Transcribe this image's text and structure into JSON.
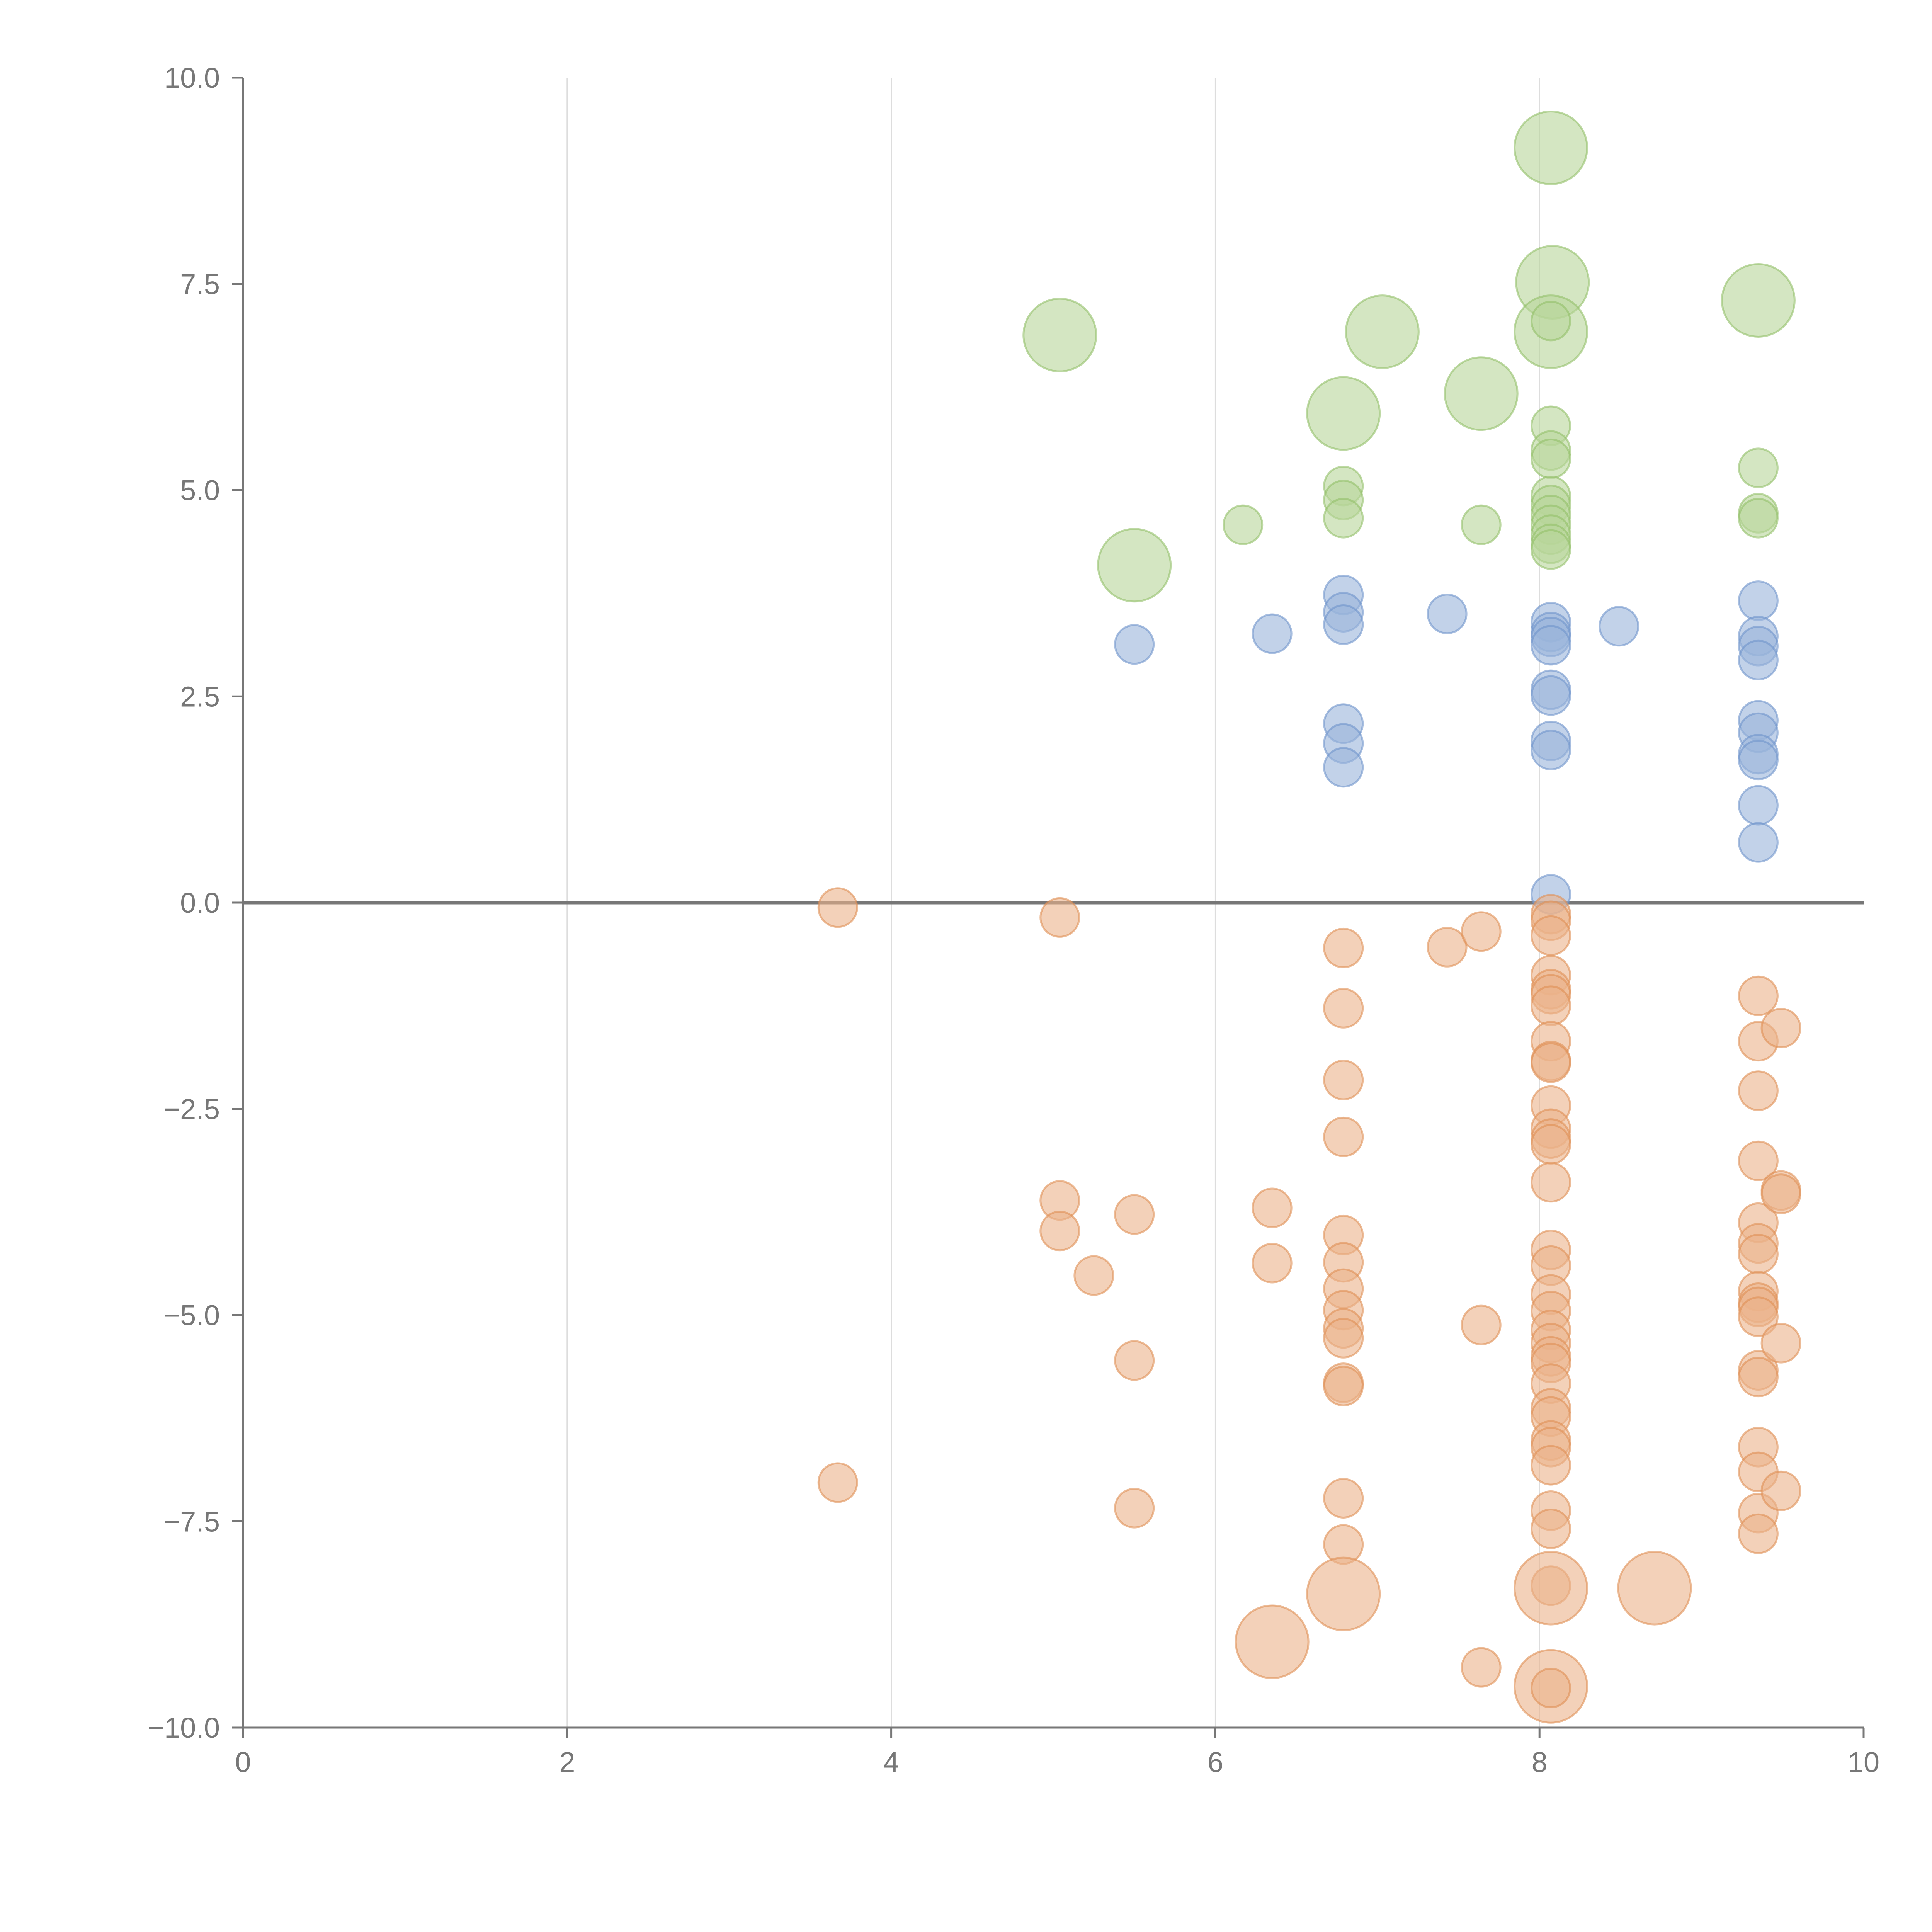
{
  "chart_data": {
    "type": "scatter",
    "title": "",
    "xlabel": "",
    "ylabel": "",
    "xlim": [
      0,
      10
    ],
    "ylim": [
      -10,
      10
    ],
    "grid": "vertical",
    "legend": "none",
    "x_ticks": [
      "0",
      "2",
      "4",
      "6",
      "8",
      "10"
    ],
    "y_ticks": [
      "10.0",
      "7.5",
      "5.0",
      "2.5",
      "0.0",
      "−2.5",
      "−5.0",
      "−7.5",
      "−10.0"
    ],
    "colors": {
      "green_fill": "#b7d59a",
      "green_stroke": "#93bf69",
      "blue_fill": "#9ab4db",
      "blue_stroke": "#6f95cb",
      "orange_fill": "#ebb28a",
      "orange_stroke": "#e08f55",
      "axis": "#777777",
      "grid": "#dddddd",
      "zero_line": "#777777",
      "tick_text": "#777777"
    },
    "series": [
      {
        "name": "green",
        "points": [
          {
            "x": 8.07,
            "y": 9.15,
            "size": "large"
          },
          {
            "x": 8.08,
            "y": 7.52,
            "size": "large"
          },
          {
            "x": 8.07,
            "y": 6.92,
            "size": "large"
          },
          {
            "x": 9.35,
            "y": 7.3,
            "size": "large"
          },
          {
            "x": 5.04,
            "y": 6.88,
            "size": "large"
          },
          {
            "x": 7.03,
            "y": 6.92,
            "size": "large"
          },
          {
            "x": 6.79,
            "y": 5.93,
            "size": "large"
          },
          {
            "x": 7.64,
            "y": 6.17,
            "size": "large"
          },
          {
            "x": 5.5,
            "y": 4.09,
            "size": "large"
          },
          {
            "x": 8.07,
            "y": 7.05,
            "size": "small"
          },
          {
            "x": 8.07,
            "y": 5.78,
            "size": "small"
          },
          {
            "x": 8.07,
            "y": 5.48,
            "size": "small"
          },
          {
            "x": 8.07,
            "y": 5.38,
            "size": "small"
          },
          {
            "x": 8.07,
            "y": 4.93,
            "size": "small"
          },
          {
            "x": 8.07,
            "y": 4.82,
            "size": "small"
          },
          {
            "x": 8.07,
            "y": 4.7,
            "size": "small"
          },
          {
            "x": 8.07,
            "y": 4.58,
            "size": "small"
          },
          {
            "x": 8.07,
            "y": 4.46,
            "size": "small"
          },
          {
            "x": 8.07,
            "y": 4.35,
            "size": "small"
          },
          {
            "x": 8.07,
            "y": 4.28,
            "size": "small"
          },
          {
            "x": 6.79,
            "y": 5.05,
            "size": "small"
          },
          {
            "x": 6.79,
            "y": 4.88,
            "size": "small"
          },
          {
            "x": 6.79,
            "y": 4.66,
            "size": "small"
          },
          {
            "x": 6.17,
            "y": 4.58,
            "size": "small"
          },
          {
            "x": 7.64,
            "y": 4.58,
            "size": "small"
          },
          {
            "x": 9.35,
            "y": 5.27,
            "size": "small"
          },
          {
            "x": 9.35,
            "y": 4.72,
            "size": "small"
          },
          {
            "x": 9.35,
            "y": 4.66,
            "size": "small"
          }
        ]
      },
      {
        "name": "blue",
        "points": [
          {
            "x": 5.5,
            "y": 3.13,
            "size": "small"
          },
          {
            "x": 6.35,
            "y": 3.26,
            "size": "small"
          },
          {
            "x": 6.79,
            "y": 3.73,
            "size": "small"
          },
          {
            "x": 6.79,
            "y": 3.52,
            "size": "small"
          },
          {
            "x": 6.79,
            "y": 3.37,
            "size": "small"
          },
          {
            "x": 6.79,
            "y": 2.17,
            "size": "small"
          },
          {
            "x": 6.79,
            "y": 1.93,
            "size": "small"
          },
          {
            "x": 6.79,
            "y": 1.64,
            "size": "small"
          },
          {
            "x": 7.43,
            "y": 3.5,
            "size": "small"
          },
          {
            "x": 8.07,
            "y": 3.4,
            "size": "small"
          },
          {
            "x": 8.07,
            "y": 3.28,
            "size": "small"
          },
          {
            "x": 8.07,
            "y": 3.22,
            "size": "small"
          },
          {
            "x": 8.07,
            "y": 3.12,
            "size": "small"
          },
          {
            "x": 8.07,
            "y": 2.58,
            "size": "small"
          },
          {
            "x": 8.07,
            "y": 2.51,
            "size": "small"
          },
          {
            "x": 8.07,
            "y": 1.96,
            "size": "small"
          },
          {
            "x": 8.07,
            "y": 1.85,
            "size": "small"
          },
          {
            "x": 8.07,
            "y": 0.1,
            "size": "small"
          },
          {
            "x": 8.49,
            "y": 3.35,
            "size": "small"
          },
          {
            "x": 9.35,
            "y": 3.66,
            "size": "small"
          },
          {
            "x": 9.35,
            "y": 3.23,
            "size": "small"
          },
          {
            "x": 9.35,
            "y": 3.11,
            "size": "small"
          },
          {
            "x": 9.35,
            "y": 2.94,
            "size": "small"
          },
          {
            "x": 9.35,
            "y": 2.21,
            "size": "small"
          },
          {
            "x": 9.35,
            "y": 2.06,
            "size": "small"
          },
          {
            "x": 9.35,
            "y": 1.8,
            "size": "small"
          },
          {
            "x": 9.35,
            "y": 1.73,
            "size": "small"
          },
          {
            "x": 9.35,
            "y": 1.18,
            "size": "small"
          },
          {
            "x": 9.35,
            "y": 0.73,
            "size": "small"
          }
        ]
      },
      {
        "name": "orange",
        "points": [
          {
            "x": 3.67,
            "y": -0.06,
            "size": "small"
          },
          {
            "x": 3.67,
            "y": -7.03,
            "size": "small"
          },
          {
            "x": 5.04,
            "y": -0.18,
            "size": "small"
          },
          {
            "x": 5.04,
            "y": -3.61,
            "size": "small"
          },
          {
            "x": 5.04,
            "y": -3.98,
            "size": "small"
          },
          {
            "x": 5.25,
            "y": -4.52,
            "size": "small"
          },
          {
            "x": 5.5,
            "y": -3.78,
            "size": "small"
          },
          {
            "x": 5.5,
            "y": -5.55,
            "size": "small"
          },
          {
            "x": 5.5,
            "y": -7.34,
            "size": "small"
          },
          {
            "x": 6.35,
            "y": -3.7,
            "size": "small"
          },
          {
            "x": 6.35,
            "y": -4.37,
            "size": "small"
          },
          {
            "x": 6.35,
            "y": -8.96,
            "size": "large"
          },
          {
            "x": 6.79,
            "y": -0.55,
            "size": "small"
          },
          {
            "x": 6.79,
            "y": -1.28,
            "size": "small"
          },
          {
            "x": 6.79,
            "y": -2.15,
            "size": "small"
          },
          {
            "x": 6.79,
            "y": -2.84,
            "size": "small"
          },
          {
            "x": 6.79,
            "y": -4.03,
            "size": "small"
          },
          {
            "x": 6.79,
            "y": -4.36,
            "size": "small"
          },
          {
            "x": 6.79,
            "y": -4.68,
            "size": "small"
          },
          {
            "x": 6.79,
            "y": -4.94,
            "size": "small"
          },
          {
            "x": 6.79,
            "y": -5.16,
            "size": "small"
          },
          {
            "x": 6.79,
            "y": -5.28,
            "size": "small"
          },
          {
            "x": 6.79,
            "y": -5.82,
            "size": "small"
          },
          {
            "x": 6.79,
            "y": -5.86,
            "size": "small"
          },
          {
            "x": 6.79,
            "y": -7.22,
            "size": "small"
          },
          {
            "x": 6.79,
            "y": -7.78,
            "size": "small"
          },
          {
            "x": 6.79,
            "y": -8.38,
            "size": "large"
          },
          {
            "x": 7.43,
            "y": -0.54,
            "size": "small"
          },
          {
            "x": 7.64,
            "y": -0.35,
            "size": "small"
          },
          {
            "x": 7.64,
            "y": -5.12,
            "size": "small"
          },
          {
            "x": 7.64,
            "y": -9.27,
            "size": "small"
          },
          {
            "x": 8.07,
            "y": -0.14,
            "size": "small"
          },
          {
            "x": 8.07,
            "y": -0.22,
            "size": "small"
          },
          {
            "x": 8.07,
            "y": -0.4,
            "size": "small"
          },
          {
            "x": 8.07,
            "y": -0.88,
            "size": "small"
          },
          {
            "x": 8.07,
            "y": -1.05,
            "size": "small"
          },
          {
            "x": 8.07,
            "y": -1.11,
            "size": "small"
          },
          {
            "x": 8.07,
            "y": -1.25,
            "size": "small"
          },
          {
            "x": 8.07,
            "y": -1.68,
            "size": "small"
          },
          {
            "x": 8.07,
            "y": -1.92,
            "size": "small"
          },
          {
            "x": 8.07,
            "y": -1.94,
            "size": "small"
          },
          {
            "x": 8.07,
            "y": -2.46,
            "size": "small"
          },
          {
            "x": 8.07,
            "y": -2.74,
            "size": "small"
          },
          {
            "x": 8.07,
            "y": -2.86,
            "size": "small"
          },
          {
            "x": 8.07,
            "y": -2.93,
            "size": "small"
          },
          {
            "x": 8.07,
            "y": -3.39,
            "size": "small"
          },
          {
            "x": 8.07,
            "y": -4.21,
            "size": "small"
          },
          {
            "x": 8.07,
            "y": -4.4,
            "size": "small"
          },
          {
            "x": 8.07,
            "y": -4.75,
            "size": "small"
          },
          {
            "x": 8.07,
            "y": -4.95,
            "size": "small"
          },
          {
            "x": 8.07,
            "y": -5.18,
            "size": "small"
          },
          {
            "x": 8.07,
            "y": -5.34,
            "size": "small"
          },
          {
            "x": 8.07,
            "y": -5.5,
            "size": "small"
          },
          {
            "x": 8.07,
            "y": -5.58,
            "size": "small"
          },
          {
            "x": 8.07,
            "y": -5.83,
            "size": "small"
          },
          {
            "x": 8.07,
            "y": -6.13,
            "size": "small"
          },
          {
            "x": 8.07,
            "y": -6.23,
            "size": "small"
          },
          {
            "x": 8.07,
            "y": -6.52,
            "size": "small"
          },
          {
            "x": 8.07,
            "y": -6.6,
            "size": "small"
          },
          {
            "x": 8.07,
            "y": -6.82,
            "size": "small"
          },
          {
            "x": 8.07,
            "y": -7.37,
            "size": "small"
          },
          {
            "x": 8.07,
            "y": -7.59,
            "size": "small"
          },
          {
            "x": 8.07,
            "y": -8.28,
            "size": "small"
          },
          {
            "x": 8.07,
            "y": -8.31,
            "size": "large"
          },
          {
            "x": 8.07,
            "y": -9.5,
            "size": "large"
          },
          {
            "x": 8.07,
            "y": -9.52,
            "size": "small"
          },
          {
            "x": 8.71,
            "y": -8.31,
            "size": "large"
          },
          {
            "x": 9.35,
            "y": -1.13,
            "size": "small"
          },
          {
            "x": 9.35,
            "y": -1.68,
            "size": "small"
          },
          {
            "x": 9.35,
            "y": -2.28,
            "size": "small"
          },
          {
            "x": 9.35,
            "y": -3.13,
            "size": "small"
          },
          {
            "x": 9.35,
            "y": -3.88,
            "size": "small"
          },
          {
            "x": 9.35,
            "y": -4.13,
            "size": "small"
          },
          {
            "x": 9.35,
            "y": -4.26,
            "size": "small"
          },
          {
            "x": 9.35,
            "y": -4.71,
            "size": "small"
          },
          {
            "x": 9.35,
            "y": -4.85,
            "size": "small"
          },
          {
            "x": 9.35,
            "y": -4.9,
            "size": "small"
          },
          {
            "x": 9.35,
            "y": -5.02,
            "size": "small"
          },
          {
            "x": 9.35,
            "y": -5.67,
            "size": "small"
          },
          {
            "x": 9.35,
            "y": -5.75,
            "size": "small"
          },
          {
            "x": 9.35,
            "y": -6.6,
            "size": "small"
          },
          {
            "x": 9.35,
            "y": -6.9,
            "size": "small"
          },
          {
            "x": 9.35,
            "y": -7.4,
            "size": "small"
          },
          {
            "x": 9.35,
            "y": -7.65,
            "size": "small"
          },
          {
            "x": 9.49,
            "y": -1.52,
            "size": "small"
          },
          {
            "x": 9.49,
            "y": -3.49,
            "size": "small"
          },
          {
            "x": 9.49,
            "y": -3.53,
            "size": "small"
          },
          {
            "x": 9.49,
            "y": -5.34,
            "size": "small"
          },
          {
            "x": 9.49,
            "y": -7.13,
            "size": "small"
          }
        ]
      }
    ]
  }
}
